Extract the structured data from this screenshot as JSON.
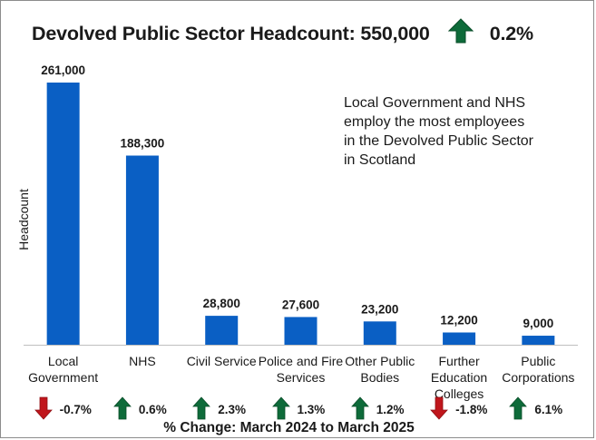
{
  "headline": {
    "title": "Devolved Public Sector Headcount: 550,000",
    "direction": "up",
    "change": "0.2%"
  },
  "annotation": "Local Government and NHS employ the most employees in the Devolved Public Sector in Scotland",
  "colors": {
    "bar": "#0a5fc4",
    "up_arrow": "#0e6b3a",
    "down_arrow": "#c0161c"
  },
  "chart_data": {
    "type": "bar",
    "title": "Devolved Public Sector Headcount: 550,000",
    "xlabel": "",
    "ylabel": "Headcount",
    "ylim": [
      0,
      261000
    ],
    "grid": false,
    "categories": [
      "Local Government",
      "NHS",
      "Civil Service",
      "Police and Fire Services",
      "Other Public Bodies",
      "Further Education Colleges",
      "Public Corporations"
    ],
    "values": [
      261000,
      188300,
      28800,
      27600,
      23200,
      12200,
      9000
    ],
    "value_labels": [
      "261,000",
      "188,300",
      "28,800",
      "27,600",
      "23,200",
      "12,200",
      "9,000"
    ],
    "changes": [
      {
        "direction": "down",
        "label": "-0.7%",
        "value": -0.7
      },
      {
        "direction": "up",
        "label": "0.6%",
        "value": 0.6
      },
      {
        "direction": "up",
        "label": "2.3%",
        "value": 2.3
      },
      {
        "direction": "up",
        "label": "1.3%",
        "value": 1.3
      },
      {
        "direction": "up",
        "label": "1.2%",
        "value": 1.2
      },
      {
        "direction": "down",
        "label": "-1.8%",
        "value": -1.8
      },
      {
        "direction": "up",
        "label": "6.1%",
        "value": 6.1
      }
    ],
    "changes_title": "% Change: March 2024 to March 2025"
  }
}
